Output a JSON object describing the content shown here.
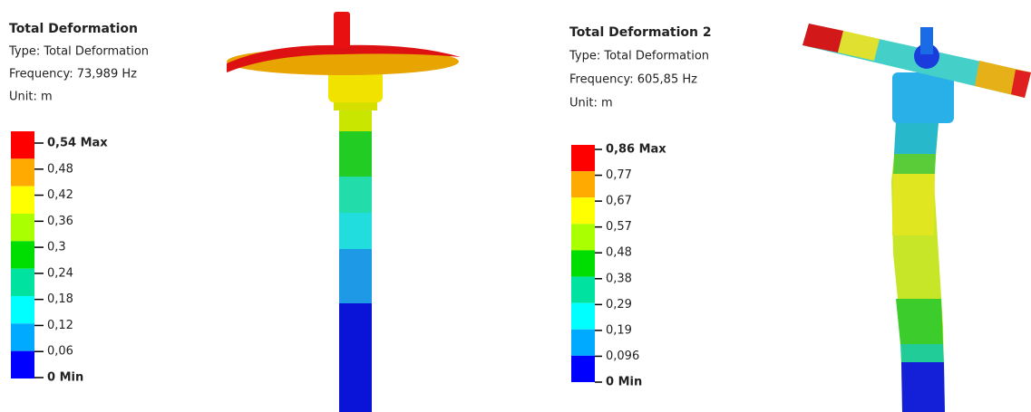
{
  "panels": [
    {
      "title": "Total Deformation",
      "type": "Type: Total Deformation",
      "frequency": "Frequency: 73,989 Hz",
      "unit": "Unit: m",
      "legend": [
        "0,54 Max",
        "0,48",
        "0,42",
        "0,36",
        "0,3",
        "0,24",
        "0,18",
        "0,12",
        "0,06",
        "0 Min"
      ]
    },
    {
      "title": "Total Deformation 2",
      "type": "Type: Total Deformation",
      "frequency": "Frequency: 605,85 Hz",
      "unit": "Unit: m",
      "legend": [
        "0,86 Max",
        "0,77",
        "0,67",
        "0,57",
        "0,48",
        "0,38",
        "0,29",
        "0,19",
        "0,096",
        "0 Min"
      ]
    }
  ]
}
